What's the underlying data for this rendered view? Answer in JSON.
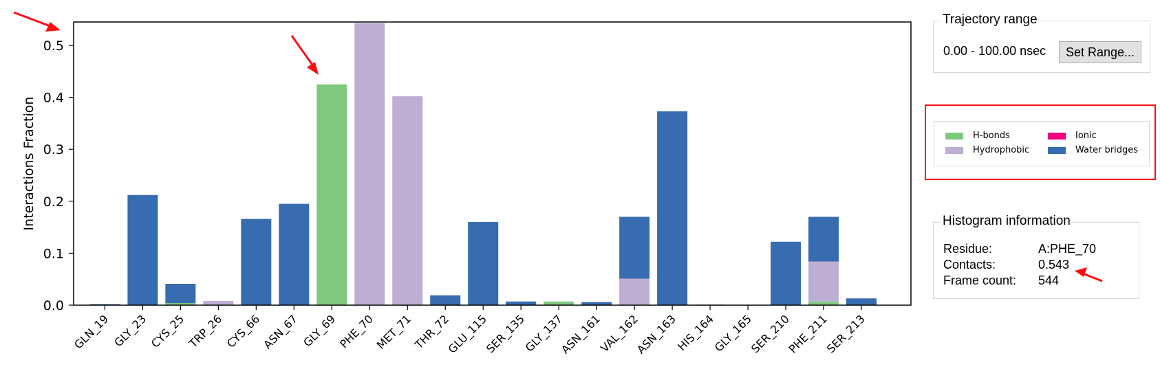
{
  "colors": {
    "hbonds": "#7fc97f",
    "hydrophobic": "#beaed4",
    "ionic": "#f0027f",
    "water_bridges": "#386cb0",
    "annotation_red": "#ff0b12"
  },
  "chart_data": {
    "type": "bar",
    "stacked": true,
    "ylabel": "Interactions Fraction",
    "ylim": [
      0,
      0.543
    ],
    "yticks": [
      "0.0",
      "0.1",
      "0.2",
      "0.3",
      "0.4",
      "0.5"
    ],
    "categories": [
      "GLN_19",
      "GLY_23",
      "CYS_25",
      "TRP_26",
      "CYS_66",
      "ASN_67",
      "GLY_69",
      "PHE_70",
      "MET_71",
      "THR_72",
      "GLU_115",
      "SER_135",
      "GLY_137",
      "ASN_161",
      "VAL_162",
      "ASN_163",
      "HIS_164",
      "GLY_165",
      "SER_210",
      "PHE_211",
      "SER_213"
    ],
    "series": [
      {
        "name": "H-bonds",
        "values": [
          0,
          0,
          0.004,
          0,
          0,
          0,
          0.425,
          0,
          0,
          0,
          0,
          0,
          0.007,
          0,
          0,
          0,
          0,
          0,
          0,
          0.007,
          0
        ]
      },
      {
        "name": "Hydrophobic",
        "values": [
          0,
          0,
          0,
          0.008,
          0,
          0,
          0,
          0.543,
          0.402,
          0,
          0,
          0,
          0,
          0,
          0.051,
          0,
          0,
          0,
          0,
          0.077,
          0
        ]
      },
      {
        "name": "Ionic",
        "values": [
          0,
          0,
          0,
          0,
          0,
          0,
          0,
          0,
          0,
          0,
          0,
          0,
          0,
          0,
          0,
          0,
          0,
          0,
          0,
          0,
          0
        ]
      },
      {
        "name": "Water bridges",
        "values": [
          0.002,
          0.212,
          0.037,
          0,
          0.166,
          0.195,
          0,
          0,
          0,
          0.019,
          0.16,
          0.007,
          0,
          0.006,
          0.119,
          0.373,
          0.001,
          0,
          0.122,
          0.086,
          0.013
        ]
      }
    ],
    "grid": false,
    "legend_position": "separate panel right"
  },
  "trajectory_range": {
    "title": "Trajectory range",
    "range_text": "0.00 - 100.00 nsec",
    "set_range_label": "Set Range..."
  },
  "legend": {
    "items": [
      {
        "label": "H-bonds"
      },
      {
        "label": "Ionic"
      },
      {
        "label": "Hydrophobic"
      },
      {
        "label": "Water bridges"
      }
    ]
  },
  "histogram_info": {
    "title": "Histogram information",
    "rows": [
      {
        "key": "Residue:",
        "value": "A:PHE_70"
      },
      {
        "key": "Contacts:",
        "value": "0.543"
      },
      {
        "key": "Frame count:",
        "value": "544"
      }
    ]
  }
}
